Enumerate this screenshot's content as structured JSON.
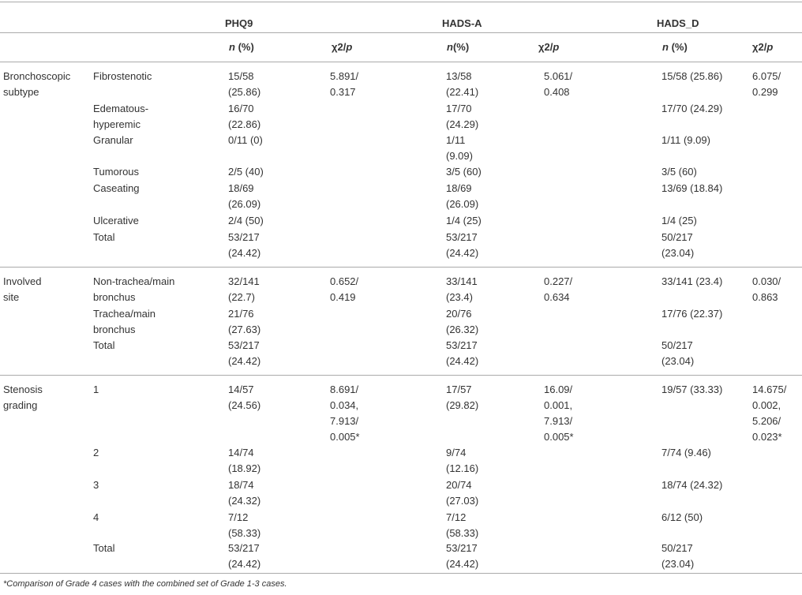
{
  "header": {
    "groups": [
      "PHQ9",
      "HADS-A",
      "HADS_D"
    ],
    "sub": [
      {
        "main": "n",
        "rest": " (%)"
      },
      {
        "main": "χ2/",
        "ital": "p"
      },
      {
        "main": "n",
        "rest": "(%)"
      },
      {
        "main": "χ2/",
        "ital": "p"
      },
      {
        "main": "n",
        "rest": " (%)"
      },
      {
        "main": "χ2/",
        "ital": "p"
      }
    ]
  },
  "sections": [
    {
      "label": "Bronchoscopic\nsubtype",
      "rows": [
        {
          "item": "Fibrostenotic",
          "phq_n": "15/58\n(25.86)",
          "phq_x": "5.891/\n0.317",
          "ha_n": "13/58\n(22.41)",
          "ha_x": "5.061/\n0.408",
          "hd_n": "15/58 (25.86)",
          "hd_x": "6.075/\n0.299"
        },
        {
          "item": "Edematous-\nhyperemic",
          "phq_n": "16/70\n(22.86)",
          "phq_x": "",
          "ha_n": "17/70\n(24.29)",
          "ha_x": "",
          "hd_n": "17/70 (24.29)",
          "hd_x": ""
        },
        {
          "item": "Granular",
          "phq_n": "0/11 (0)",
          "phq_x": "",
          "ha_n": "1/11\n(9.09)",
          "ha_x": "",
          "hd_n": "1/11 (9.09)",
          "hd_x": ""
        },
        {
          "item": "Tumorous",
          "phq_n": "2/5 (40)",
          "phq_x": "",
          "ha_n": "3/5 (60)",
          "ha_x": "",
          "hd_n": "3/5 (60)",
          "hd_x": ""
        },
        {
          "item": "Caseating",
          "phq_n": "18/69\n(26.09)",
          "phq_x": "",
          "ha_n": "18/69\n(26.09)",
          "ha_x": "",
          "hd_n": "13/69 (18.84)",
          "hd_x": ""
        },
        {
          "item": "Ulcerative",
          "phq_n": "2/4 (50)",
          "phq_x": "",
          "ha_n": "1/4 (25)",
          "ha_x": "",
          "hd_n": "1/4 (25)",
          "hd_x": ""
        },
        {
          "item": "Total",
          "phq_n": "53/217\n(24.42)",
          "phq_x": "",
          "ha_n": "53/217\n(24.42)",
          "ha_x": "",
          "hd_n": "50/217\n(23.04)",
          "hd_x": ""
        }
      ]
    },
    {
      "label": "Involved\nsite",
      "rows": [
        {
          "item": "Non-trachea/main\nbronchus",
          "phq_n": "32/141\n(22.7)",
          "phq_x": "0.652/\n0.419",
          "ha_n": "33/141\n(23.4)",
          "ha_x": "0.227/\n0.634",
          "hd_n": "33/141 (23.4)",
          "hd_x": "0.030/\n0.863"
        },
        {
          "item": "Trachea/main\nbronchus",
          "phq_n": "21/76\n(27.63)",
          "phq_x": "",
          "ha_n": "20/76\n(26.32)",
          "ha_x": "",
          "hd_n": "17/76 (22.37)",
          "hd_x": ""
        },
        {
          "item": "Total",
          "phq_n": "53/217\n(24.42)",
          "phq_x": "",
          "ha_n": "53/217\n(24.42)",
          "ha_x": "",
          "hd_n": "50/217\n(23.04)",
          "hd_x": ""
        }
      ]
    },
    {
      "label": "Stenosis\ngrading",
      "rows": [
        {
          "item": "1",
          "phq_n": "14/57\n(24.56)",
          "phq_x": "8.691/\n0.034,\n7.913/\n0.005*",
          "ha_n": "17/57\n(29.82)",
          "ha_x": "16.09/\n0.001,\n7.913/\n0.005*",
          "hd_n": "19/57 (33.33)",
          "hd_x": "14.675/\n0.002,\n5.206/\n0.023*"
        },
        {
          "item": "2",
          "phq_n": "14/74\n(18.92)",
          "phq_x": "",
          "ha_n": "9/74\n(12.16)",
          "ha_x": "",
          "hd_n": "7/74 (9.46)",
          "hd_x": ""
        },
        {
          "item": "3",
          "phq_n": "18/74\n(24.32)",
          "phq_x": "",
          "ha_n": "20/74\n(27.03)",
          "ha_x": "",
          "hd_n": "18/74 (24.32)",
          "hd_x": ""
        },
        {
          "item": "4",
          "phq_n": "7/12\n(58.33)",
          "phq_x": "",
          "ha_n": "7/12\n(58.33)",
          "ha_x": "",
          "hd_n": "6/12 (50)",
          "hd_x": ""
        },
        {
          "item": "Total",
          "phq_n": "53/217\n(24.42)",
          "phq_x": "",
          "ha_n": "53/217\n(24.42)",
          "ha_x": "",
          "hd_n": "50/217\n(23.04)",
          "hd_x": ""
        }
      ]
    }
  ],
  "footnote": "*Comparison of Grade 4 cases with the combined set of Grade 1-3 cases."
}
